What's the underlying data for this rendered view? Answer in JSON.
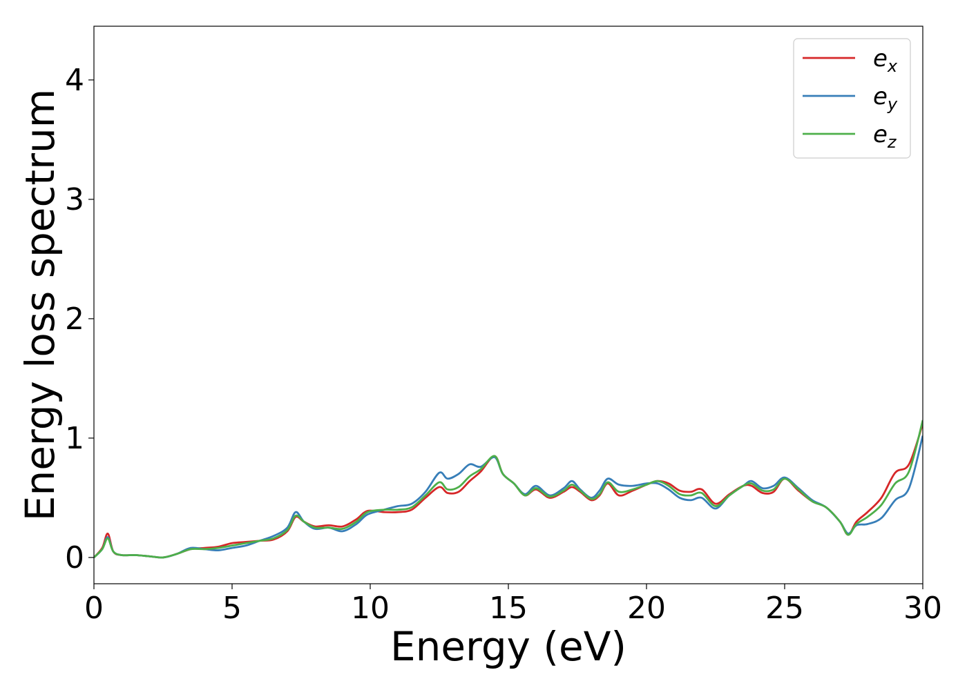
{
  "chart_data": {
    "type": "line",
    "xlabel": "Energy (eV)",
    "ylabel": "Energy loss spectrum",
    "xlim": [
      0,
      30
    ],
    "ylim": [
      -0.22,
      4.45
    ],
    "xticks": [
      0,
      5,
      10,
      15,
      20,
      25,
      30
    ],
    "yticks": [
      0,
      1,
      2,
      3,
      4
    ],
    "grid": false,
    "legend_position": "top-right",
    "series": [
      {
        "name": "e_x",
        "legend_base": "e",
        "legend_sub": "x",
        "color": "#d62728",
        "x": [
          0,
          0.3,
          0.5,
          0.7,
          1.0,
          1.5,
          2.0,
          2.5,
          3.0,
          3.5,
          4.0,
          4.5,
          5.0,
          5.5,
          6.0,
          6.5,
          7.0,
          7.3,
          7.6,
          8.0,
          8.5,
          9.0,
          9.5,
          9.9,
          10.5,
          11.0,
          11.5,
          12.0,
          12.5,
          12.8,
          13.2,
          13.6,
          14.0,
          14.5,
          14.8,
          15.2,
          15.6,
          16.0,
          16.5,
          17.0,
          17.3,
          17.6,
          18.0,
          18.3,
          18.6,
          19.0,
          19.5,
          20.0,
          20.4,
          20.8,
          21.2,
          21.6,
          22.0,
          22.5,
          23.0,
          23.5,
          23.8,
          24.2,
          24.6,
          25.0,
          25.5,
          26.0,
          26.5,
          27.0,
          27.3,
          27.6,
          28.0,
          28.5,
          29.0,
          29.5,
          30.0
        ],
        "y": [
          0.0,
          0.08,
          0.2,
          0.05,
          0.02,
          0.02,
          0.01,
          0.0,
          0.03,
          0.07,
          0.08,
          0.09,
          0.12,
          0.13,
          0.14,
          0.15,
          0.22,
          0.34,
          0.3,
          0.26,
          0.27,
          0.26,
          0.32,
          0.39,
          0.38,
          0.38,
          0.4,
          0.5,
          0.59,
          0.54,
          0.55,
          0.64,
          0.72,
          0.85,
          0.7,
          0.62,
          0.52,
          0.57,
          0.5,
          0.55,
          0.59,
          0.55,
          0.48,
          0.52,
          0.62,
          0.52,
          0.56,
          0.61,
          0.64,
          0.62,
          0.56,
          0.55,
          0.57,
          0.45,
          0.53,
          0.6,
          0.6,
          0.54,
          0.55,
          0.66,
          0.56,
          0.47,
          0.42,
          0.3,
          0.19,
          0.3,
          0.38,
          0.5,
          0.71,
          0.78,
          1.12
        ]
      },
      {
        "name": "e_y",
        "legend_base": "e",
        "legend_sub": "y",
        "color": "#377eb8",
        "x": [
          0,
          0.3,
          0.5,
          0.7,
          1.0,
          1.5,
          2.0,
          2.5,
          3.0,
          3.5,
          4.0,
          4.5,
          5.0,
          5.5,
          6.0,
          6.5,
          7.0,
          7.3,
          7.6,
          8.0,
          8.5,
          9.0,
          9.5,
          9.9,
          10.5,
          11.0,
          11.5,
          12.0,
          12.5,
          12.8,
          13.2,
          13.6,
          14.0,
          14.5,
          14.8,
          15.2,
          15.6,
          16.0,
          16.5,
          17.0,
          17.3,
          17.6,
          18.0,
          18.3,
          18.6,
          19.0,
          19.5,
          20.0,
          20.4,
          20.8,
          21.2,
          21.6,
          22.0,
          22.5,
          23.0,
          23.5,
          23.8,
          24.2,
          24.6,
          25.0,
          25.5,
          26.0,
          26.5,
          27.0,
          27.3,
          27.6,
          28.0,
          28.5,
          29.0,
          29.5,
          30.0
        ],
        "y": [
          0.0,
          0.07,
          0.17,
          0.05,
          0.02,
          0.02,
          0.01,
          0.0,
          0.03,
          0.08,
          0.07,
          0.06,
          0.08,
          0.1,
          0.14,
          0.18,
          0.25,
          0.38,
          0.3,
          0.24,
          0.25,
          0.22,
          0.28,
          0.36,
          0.4,
          0.43,
          0.45,
          0.55,
          0.71,
          0.66,
          0.7,
          0.78,
          0.76,
          0.84,
          0.7,
          0.62,
          0.53,
          0.6,
          0.52,
          0.58,
          0.64,
          0.57,
          0.5,
          0.56,
          0.66,
          0.61,
          0.6,
          0.62,
          0.62,
          0.57,
          0.5,
          0.48,
          0.5,
          0.41,
          0.52,
          0.6,
          0.64,
          0.58,
          0.6,
          0.67,
          0.58,
          0.48,
          0.42,
          0.3,
          0.2,
          0.27,
          0.28,
          0.33,
          0.48,
          0.58,
          1.02
        ]
      },
      {
        "name": "e_z",
        "legend_base": "e",
        "legend_sub": "z",
        "color": "#4daf4a",
        "x": [
          0,
          0.3,
          0.5,
          0.7,
          1.0,
          1.5,
          2.0,
          2.5,
          3.0,
          3.5,
          4.0,
          4.5,
          5.0,
          5.5,
          6.0,
          6.5,
          7.0,
          7.3,
          7.6,
          8.0,
          8.5,
          9.0,
          9.5,
          9.9,
          10.5,
          11.0,
          11.5,
          12.0,
          12.5,
          12.8,
          13.2,
          13.6,
          14.0,
          14.5,
          14.8,
          15.2,
          15.6,
          16.0,
          16.5,
          17.0,
          17.3,
          17.6,
          18.0,
          18.3,
          18.6,
          19.0,
          19.5,
          20.0,
          20.4,
          20.8,
          21.2,
          21.6,
          22.0,
          22.5,
          23.0,
          23.5,
          23.8,
          24.2,
          24.6,
          25.0,
          25.5,
          26.0,
          26.5,
          27.0,
          27.3,
          27.6,
          28.0,
          28.5,
          29.0,
          29.5,
          30.0
        ],
        "y": [
          0.0,
          0.07,
          0.16,
          0.05,
          0.02,
          0.02,
          0.01,
          0.0,
          0.03,
          0.07,
          0.07,
          0.08,
          0.1,
          0.12,
          0.14,
          0.16,
          0.23,
          0.35,
          0.3,
          0.25,
          0.25,
          0.24,
          0.3,
          0.38,
          0.4,
          0.4,
          0.42,
          0.52,
          0.63,
          0.57,
          0.59,
          0.68,
          0.74,
          0.85,
          0.7,
          0.62,
          0.52,
          0.58,
          0.51,
          0.56,
          0.61,
          0.56,
          0.49,
          0.53,
          0.63,
          0.55,
          0.57,
          0.61,
          0.64,
          0.6,
          0.53,
          0.52,
          0.54,
          0.43,
          0.52,
          0.6,
          0.62,
          0.56,
          0.57,
          0.66,
          0.57,
          0.47,
          0.42,
          0.3,
          0.19,
          0.28,
          0.34,
          0.44,
          0.62,
          0.72,
          1.15
        ]
      }
    ]
  }
}
